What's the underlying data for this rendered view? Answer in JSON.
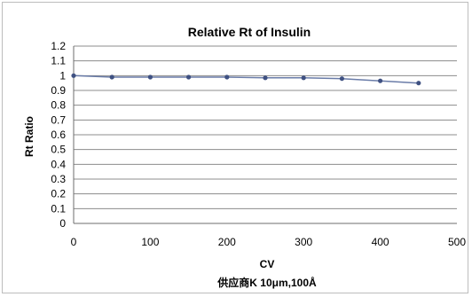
{
  "chart_data": {
    "type": "line",
    "title": "Relative Rt of Insulin",
    "xlabel": "CV",
    "ylabel": "Rt Ratio",
    "caption": "供应商K 10μm,100Å",
    "x": [
      0,
      50,
      100,
      150,
      200,
      250,
      300,
      350,
      400,
      450
    ],
    "series": [
      {
        "values": [
          1.0,
          0.99,
          0.99,
          0.99,
          0.99,
          0.985,
          0.985,
          0.98,
          0.965,
          0.95
        ]
      }
    ],
    "xlim": [
      0,
      500
    ],
    "ylim": [
      0,
      1.2
    ],
    "xticks": [
      "0",
      "100",
      "200",
      "300",
      "400",
      "500"
    ],
    "yticks": [
      "0",
      "0.1",
      "0.2",
      "0.3",
      "0.4",
      "0.5",
      "0.6",
      "0.7",
      "0.8",
      "0.9",
      "1",
      "1.1",
      "1.2"
    ],
    "grid": true,
    "legend": "none",
    "colors": {
      "line": "#6a7ca8",
      "marker": "#3f5182",
      "grid": "#8c8c8c",
      "axis": "#6e6e6e"
    }
  }
}
